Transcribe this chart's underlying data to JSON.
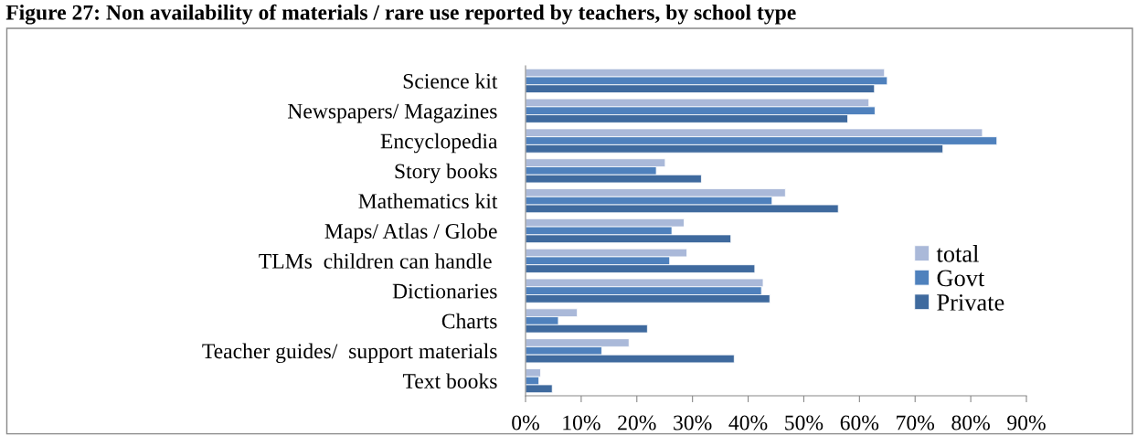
{
  "chart_data": {
    "type": "bar",
    "orientation": "horizontal",
    "title": "Figure 27: Non availability of materials / rare use reported by teachers, by school type",
    "categories": [
      "Science kit",
      "Newspapers/ Magazines",
      "Encyclopedia",
      "Story books",
      "Mathematics kit",
      "Maps/ Atlas / Globe",
      "TLMs  children can handle ",
      "Dictionaries",
      "Charts",
      "Teacher guides/  support materials",
      "Text books"
    ],
    "series": [
      {
        "name": "total",
        "color": "#aab9d9",
        "values": [
          64.5,
          61.7,
          82.1,
          25.1,
          46.7,
          28.5,
          29.0,
          42.7,
          9.3,
          18.6,
          2.7
        ]
      },
      {
        "name": "Govt",
        "color": "#4f81bd",
        "values": [
          65.0,
          62.8,
          84.7,
          23.5,
          44.3,
          26.3,
          25.9,
          42.4,
          5.9,
          13.7,
          2.4
        ]
      },
      {
        "name": "Private",
        "color": "#3f6a9e",
        "values": [
          62.7,
          57.9,
          75.0,
          31.6,
          56.2,
          36.9,
          41.2,
          43.9,
          21.9,
          37.5,
          4.8
        ]
      }
    ],
    "xlim": [
      0,
      90
    ],
    "xticks": [
      {
        "value": 0,
        "label": "0%"
      },
      {
        "value": 10,
        "label": "10%"
      },
      {
        "value": 20,
        "label": "20%"
      },
      {
        "value": 30,
        "label": "30%"
      },
      {
        "value": 40,
        "label": "40%"
      },
      {
        "value": 50,
        "label": "50%"
      },
      {
        "value": 60,
        "label": "60%"
      },
      {
        "value": 70,
        "label": "70%"
      },
      {
        "value": 80,
        "label": "80%"
      },
      {
        "value": 90,
        "label": "90%"
      }
    ],
    "grid": false,
    "legend": "right"
  }
}
